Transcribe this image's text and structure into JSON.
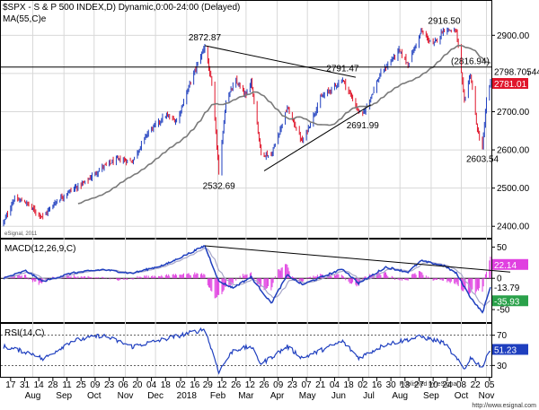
{
  "header": {
    "title": "$SPX - S & P 500 INDEX,D) Dynamic,0:00-24:00 (Delayed)",
    "ma_label": "MA(55,C)e",
    "watermark": "eSignal, 2011"
  },
  "footer": {
    "published": "Published by eSignal",
    "url": "http://www.esignal.com"
  },
  "colors": {
    "up": "#1f3fbf",
    "down": "#e0162b",
    "ma": "#7a7a7a",
    "macd": "#1f3fbf",
    "signal": "#a6a6c8",
    "hist": "#e040e0",
    "rsi": "#1f3fbf",
    "ref_line": "#000000",
    "grid": "#d8d8d8"
  },
  "chart_data": [
    {
      "type": "candlestick",
      "panel": "price",
      "ylim": [
        2370,
        2990
      ],
      "y_ticks": [
        2400,
        2500,
        2600,
        2700,
        2800,
        2900
      ],
      "y_tick_labels": [
        "2400.00",
        "2500.00",
        "2600.00",
        "2700.00",
        "2800.00",
        "2900.00"
      ],
      "x_range": [
        "2017-07-10",
        "2018-11-06"
      ],
      "ohlc_anchors": [
        [
          "2017-07-10",
          2410
        ],
        [
          "2017-07-20",
          2470
        ],
        [
          "2017-07-31",
          2465
        ],
        [
          "2017-08-10",
          2440
        ],
        [
          "2017-08-18",
          2425
        ],
        [
          "2017-08-31",
          2465
        ],
        [
          "2017-09-15",
          2495
        ],
        [
          "2017-09-29",
          2515
        ],
        [
          "2017-10-16",
          2555
        ],
        [
          "2017-10-31",
          2575
        ],
        [
          "2017-11-15",
          2570
        ],
        [
          "2017-11-30",
          2645
        ],
        [
          "2017-12-18",
          2690
        ],
        [
          "2017-12-29",
          2675
        ],
        [
          "2018-01-12",
          2780
        ],
        [
          "2018-01-26",
          2872.87
        ],
        [
          "2018-02-02",
          2770
        ],
        [
          "2018-02-08",
          2580
        ],
        [
          "2018-02-09",
          2532.69
        ],
        [
          "2018-02-16",
          2730
        ],
        [
          "2018-02-26",
          2780
        ],
        [
          "2018-03-08",
          2740
        ],
        [
          "2018-03-13",
          2785
        ],
        [
          "2018-03-23",
          2590
        ],
        [
          "2018-04-02",
          2585
        ],
        [
          "2018-04-18",
          2710
        ],
        [
          "2018-05-03",
          2620
        ],
        [
          "2018-05-21",
          2735
        ],
        [
          "2018-06-12",
          2785
        ],
        [
          "2018-06-28",
          2700
        ],
        [
          "2018-07-02",
          2691.99
        ],
        [
          "2018-07-20",
          2800
        ],
        [
          "2018-08-07",
          2860
        ],
        [
          "2018-08-16",
          2825
        ],
        [
          "2018-08-29",
          2910
        ],
        [
          "2018-09-10",
          2875
        ],
        [
          "2018-09-21",
          2916.5
        ],
        [
          "2018-10-03",
          2910
        ],
        [
          "2018-10-11",
          2730
        ],
        [
          "2018-10-17",
          2800
        ],
        [
          "2018-10-24",
          2650
        ],
        [
          "2018-10-29",
          2603.54
        ],
        [
          "2018-11-02",
          2730
        ],
        [
          "2018-11-05",
          2760
        ],
        [
          "2018-11-06",
          2781.01
        ]
      ],
      "ma_label": "MA(55,C)",
      "annotations": [
        {
          "label": "2872.87",
          "date": "2018-01-26",
          "value": 2872.87,
          "position": "above"
        },
        {
          "label": "2532.69",
          "date": "2018-02-09",
          "value": 2532.69,
          "position": "below"
        },
        {
          "label": "2791.47",
          "date": "2018-06-12",
          "value": 2791.47,
          "position": "above"
        },
        {
          "label": "2691.99",
          "date": "2018-07-02",
          "value": 2691.99,
          "position": "below"
        },
        {
          "label": "2916.50",
          "date": "2018-09-21",
          "value": 2916.5,
          "position": "above"
        },
        {
          "label": "2603.54",
          "date": "2018-10-29",
          "value": 2603.54,
          "position": "below"
        }
      ],
      "trendlines": [
        {
          "from": [
            "2018-01-26",
            2872.87
          ],
          "to": [
            "2018-06-25",
            2790
          ]
        },
        {
          "from": [
            "2018-03-26",
            2545
          ],
          "to": [
            "2018-07-10",
            2718
          ]
        }
      ],
      "horizontal_line": {
        "value": 2816.94,
        "label": "(2816.94)"
      },
      "price_tags": [
        {
          "label": "2798.70544",
          "value": 2798.7
        },
        {
          "label": "2781.01",
          "value": 2781.01
        }
      ]
    },
    {
      "type": "macd",
      "panel": "macd",
      "label": "MACD(12,26,9,C)",
      "ylim": [
        -70,
        62
      ],
      "y_ticks": [
        50,
        0,
        -50
      ],
      "y_tick_labels": [
        "50",
        "0",
        "-50"
      ],
      "macd_anchors": [
        [
          "2017-07-10",
          0
        ],
        [
          "2017-08-01",
          12
        ],
        [
          "2017-08-18",
          -5
        ],
        [
          "2017-09-15",
          8
        ],
        [
          "2017-10-16",
          14
        ],
        [
          "2017-11-15",
          8
        ],
        [
          "2017-12-18",
          22
        ],
        [
          "2018-01-26",
          52
        ],
        [
          "2018-02-09",
          -5
        ],
        [
          "2018-02-23",
          -15
        ],
        [
          "2018-03-13",
          2
        ],
        [
          "2018-04-02",
          -40
        ],
        [
          "2018-04-18",
          5
        ],
        [
          "2018-05-03",
          -10
        ],
        [
          "2018-06-12",
          15
        ],
        [
          "2018-06-28",
          -8
        ],
        [
          "2018-07-25",
          18
        ],
        [
          "2018-08-16",
          10
        ],
        [
          "2018-08-29",
          28
        ],
        [
          "2018-09-21",
          20
        ],
        [
          "2018-10-03",
          8
        ],
        [
          "2018-10-17",
          -30
        ],
        [
          "2018-10-29",
          -55
        ],
        [
          "2018-11-06",
          -13.79
        ]
      ],
      "signal_value": -35.93,
      "hist_value": 22.14,
      "trendline": {
        "from": [
          "2018-01-26",
          52
        ],
        "to": [
          "2018-11-06",
          10
        ]
      },
      "tags": [
        {
          "label": "22.14",
          "value": 22.14,
          "kind": "hist"
        },
        {
          "label": "-13.79",
          "value": -13.79,
          "kind": "macd"
        },
        {
          "label": "-35.93",
          "value": -35.93,
          "kind": "signal"
        }
      ]
    },
    {
      "type": "line",
      "panel": "rsi",
      "label": "RSI(14,C)",
      "ylim": [
        15,
        85
      ],
      "y_ticks": [
        70,
        30
      ],
      "y_tick_labels": [
        "70",
        "30"
      ],
      "rsi_anchors": [
        [
          "2017-07-10",
          55
        ],
        [
          "2017-08-10",
          45
        ],
        [
          "2017-08-18",
          38
        ],
        [
          "2017-09-15",
          62
        ],
        [
          "2017-10-16",
          70
        ],
        [
          "2017-11-15",
          55
        ],
        [
          "2017-12-18",
          65
        ],
        [
          "2018-01-26",
          78
        ],
        [
          "2018-02-09",
          22
        ],
        [
          "2018-02-23",
          50
        ],
        [
          "2018-03-13",
          55
        ],
        [
          "2018-03-23",
          32
        ],
        [
          "2018-04-18",
          55
        ],
        [
          "2018-05-03",
          40
        ],
        [
          "2018-06-12",
          62
        ],
        [
          "2018-06-28",
          40
        ],
        [
          "2018-07-25",
          58
        ],
        [
          "2018-08-29",
          68
        ],
        [
          "2018-09-21",
          60
        ],
        [
          "2018-10-11",
          25
        ],
        [
          "2018-10-17",
          40
        ],
        [
          "2018-10-29",
          28
        ],
        [
          "2018-11-06",
          51.23
        ]
      ],
      "tags": [
        {
          "label": "51.23",
          "value": 51.23
        }
      ]
    }
  ],
  "x_axis": {
    "day_ticks": [
      {
        "label": "17",
        "date": "2017-07-17"
      },
      {
        "label": "31",
        "date": "2017-07-31"
      },
      {
        "label": "14",
        "date": "2017-08-14"
      },
      {
        "label": "28",
        "date": "2017-08-28"
      },
      {
        "label": "11",
        "date": "2017-09-11"
      },
      {
        "label": "25",
        "date": "2017-09-25"
      },
      {
        "label": "09",
        "date": "2017-10-09"
      },
      {
        "label": "23",
        "date": "2017-10-23"
      },
      {
        "label": "06",
        "date": "2017-11-06"
      },
      {
        "label": "20",
        "date": "2017-11-20"
      },
      {
        "label": "04",
        "date": "2017-12-04"
      },
      {
        "label": "18",
        "date": "2017-12-18"
      },
      {
        "label": "02",
        "date": "2018-01-02"
      },
      {
        "label": "16",
        "date": "2018-01-16"
      },
      {
        "label": "29",
        "date": "2018-01-29"
      },
      {
        "label": "12",
        "date": "2018-02-12"
      },
      {
        "label": "26",
        "date": "2018-02-26"
      },
      {
        "label": "12",
        "date": "2018-03-12"
      },
      {
        "label": "26",
        "date": "2018-03-26"
      },
      {
        "label": "09",
        "date": "2018-04-09"
      },
      {
        "label": "23",
        "date": "2018-04-23"
      },
      {
        "label": "07",
        "date": "2018-05-07"
      },
      {
        "label": "21",
        "date": "2018-05-21"
      },
      {
        "label": "04",
        "date": "2018-06-04"
      },
      {
        "label": "18",
        "date": "2018-06-18"
      },
      {
        "label": "02",
        "date": "2018-07-02"
      },
      {
        "label": "16",
        "date": "2018-07-16"
      },
      {
        "label": "30",
        "date": "2018-07-30"
      },
      {
        "label": "13",
        "date": "2018-08-13"
      },
      {
        "label": "27",
        "date": "2018-08-27"
      },
      {
        "label": "10",
        "date": "2018-09-10"
      },
      {
        "label": "24",
        "date": "2018-09-24"
      },
      {
        "label": "08",
        "date": "2018-10-08"
      },
      {
        "label": "22",
        "date": "2018-10-22"
      },
      {
        "label": "05",
        "date": "2018-11-05"
      }
    ],
    "month_ticks": [
      {
        "label": "Aug",
        "date": "2017-08-08"
      },
      {
        "label": "Sep",
        "date": "2017-09-08"
      },
      {
        "label": "Oct",
        "date": "2017-10-08"
      },
      {
        "label": "Nov",
        "date": "2017-11-08"
      },
      {
        "label": "Dec",
        "date": "2017-12-08"
      },
      {
        "label": "2018",
        "date": "2018-01-08"
      },
      {
        "label": "Feb",
        "date": "2018-02-08"
      },
      {
        "label": "Mar",
        "date": "2018-03-08"
      },
      {
        "label": "Apr",
        "date": "2018-04-08"
      },
      {
        "label": "May",
        "date": "2018-05-08"
      },
      {
        "label": "Jun",
        "date": "2018-06-08"
      },
      {
        "label": "Jul",
        "date": "2018-07-08"
      },
      {
        "label": "Aug",
        "date": "2018-08-08"
      },
      {
        "label": "Sep",
        "date": "2018-09-08"
      },
      {
        "label": "Oct",
        "date": "2018-10-08"
      },
      {
        "label": "Nov",
        "date": "2018-11-02"
      }
    ]
  }
}
